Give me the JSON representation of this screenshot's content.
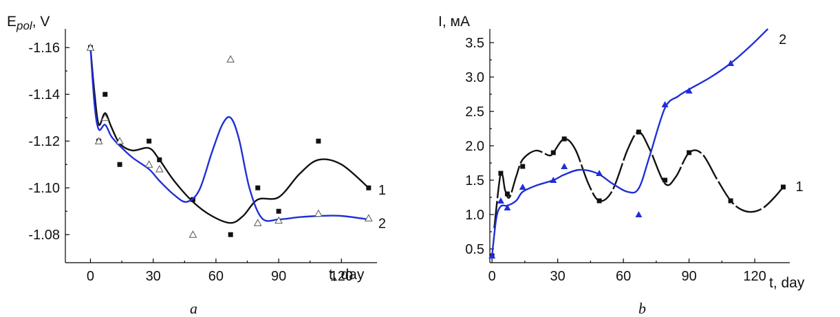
{
  "colors": {
    "series1": "#111111",
    "series2": "#1f2fd6"
  },
  "chart_data": [
    {
      "type": "scatter",
      "panel_label": "a",
      "ylabel_main": "E",
      "ylabel_sub": "pol",
      "ylabel_tail": ", V",
      "xlabel": "t, day",
      "xlim": [
        -12,
        137
      ],
      "ylim": [
        -1.168,
        -1.068
      ],
      "y_inverted": true,
      "xticks": [
        0,
        30,
        60,
        90,
        120
      ],
      "xtick_labels": [
        "0",
        "30",
        "60",
        "90",
        "120"
      ],
      "yticks": [
        -1.16,
        -1.14,
        -1.12,
        -1.1,
        -1.08
      ],
      "ytick_labels": [
        "-1.16",
        "-1.14",
        "-1.12",
        "-1.10",
        "-1.08"
      ],
      "series": [
        {
          "name": "1",
          "marker": "square",
          "x": [
            0,
            4,
            7,
            14,
            28,
            33,
            49,
            67,
            80,
            90,
            109,
            133
          ],
          "y": [
            -1.16,
            -1.12,
            -1.14,
            -1.11,
            -1.12,
            -1.112,
            -1.095,
            -1.08,
            -1.1,
            -1.09,
            -1.12,
            -1.1
          ],
          "fit_x": [
            0,
            2,
            4,
            7,
            10,
            14,
            20,
            28,
            33,
            40,
            49,
            58,
            67,
            73,
            80,
            90,
            100,
            109,
            120,
            133
          ],
          "fit_y": [
            -1.16,
            -1.14,
            -1.127,
            -1.132,
            -1.126,
            -1.119,
            -1.116,
            -1.117,
            -1.112,
            -1.103,
            -1.094,
            -1.088,
            -1.085,
            -1.088,
            -1.095,
            -1.096,
            -1.106,
            -1.112,
            -1.11,
            -1.1
          ]
        },
        {
          "name": "2",
          "marker": "triangle-open",
          "x": [
            0,
            4,
            7,
            14,
            28,
            33,
            49,
            67,
            80,
            90,
            109,
            133
          ],
          "y": [
            -1.16,
            -1.12,
            -1.13,
            -1.12,
            -1.11,
            -1.108,
            -1.08,
            -1.155,
            -1.085,
            -1.086,
            -1.089,
            -1.087
          ],
          "fit_x": [
            0,
            2,
            4,
            7,
            10,
            14,
            20,
            28,
            33,
            40,
            46,
            52,
            58,
            63,
            67,
            71,
            76,
            82,
            90,
            100,
            110,
            120,
            133
          ],
          "fit_y": [
            -1.16,
            -1.135,
            -1.125,
            -1.127,
            -1.122,
            -1.118,
            -1.113,
            -1.108,
            -1.103,
            -1.097,
            -1.094,
            -1.099,
            -1.115,
            -1.127,
            -1.13,
            -1.121,
            -1.1,
            -1.087,
            -1.0865,
            -1.0875,
            -1.088,
            -1.088,
            -1.0865
          ]
        }
      ]
    },
    {
      "type": "scatter",
      "panel_label": "b",
      "ylabel_main": "I, мА",
      "xlabel": "t, day",
      "xlim": [
        -1,
        136
      ],
      "ylim": [
        0.3,
        3.7
      ],
      "y_inverted": false,
      "xticks": [
        0,
        30,
        60,
        90,
        120
      ],
      "xtick_labels": [
        "0",
        "30",
        "60",
        "90",
        "120"
      ],
      "yticks": [
        0.5,
        1.0,
        1.5,
        2.0,
        2.5,
        3.0,
        3.5
      ],
      "ytick_labels": [
        "0.5",
        "1.0",
        "1.5",
        "2.0",
        "2.5",
        "3.0",
        "3.5"
      ],
      "series": [
        {
          "name": "1",
          "marker": "square",
          "x": [
            0,
            4,
            7,
            14,
            28,
            33,
            49,
            67,
            79,
            90,
            109,
            133
          ],
          "y": [
            0.4,
            1.6,
            1.3,
            1.7,
            1.9,
            2.1,
            1.2,
            2.2,
            1.5,
            1.9,
            1.2,
            1.4
          ],
          "fit_x": [
            1,
            4,
            6,
            8,
            11,
            14,
            20,
            26,
            28,
            33,
            38,
            44,
            49,
            55,
            62,
            67,
            72,
            79,
            84,
            90,
            96,
            103,
            109,
            114,
            119,
            124,
            129,
            133
          ],
          "fit_y": [
            0.8,
            1.6,
            1.35,
            1.25,
            1.55,
            1.8,
            1.93,
            1.86,
            1.9,
            2.1,
            1.95,
            1.45,
            1.2,
            1.35,
            1.95,
            2.2,
            1.95,
            1.45,
            1.55,
            1.9,
            1.88,
            1.5,
            1.2,
            1.07,
            1.04,
            1.1,
            1.25,
            1.4
          ],
          "gaps_before_index": [
            3,
            6,
            9,
            13,
            18,
            21
          ]
        },
        {
          "name": "2",
          "marker": "triangle",
          "x": [
            0,
            4,
            7,
            14,
            28,
            33,
            49,
            67,
            79,
            90,
            109
          ],
          "y": [
            0.4,
            1.2,
            1.1,
            1.4,
            1.5,
            1.7,
            1.6,
            1.0,
            2.6,
            2.8,
            3.2
          ],
          "fit_x": [
            0,
            2,
            4,
            7,
            11,
            14,
            20,
            28,
            33,
            40,
            48,
            55,
            62,
            67,
            72,
            79,
            85,
            90,
            100,
            109,
            118,
            126
          ],
          "fit_y": [
            0.4,
            0.95,
            1.12,
            1.13,
            1.2,
            1.33,
            1.42,
            1.5,
            1.58,
            1.65,
            1.6,
            1.45,
            1.33,
            1.38,
            1.85,
            2.55,
            2.72,
            2.82,
            3.0,
            3.2,
            3.45,
            3.7
          ]
        }
      ]
    }
  ]
}
